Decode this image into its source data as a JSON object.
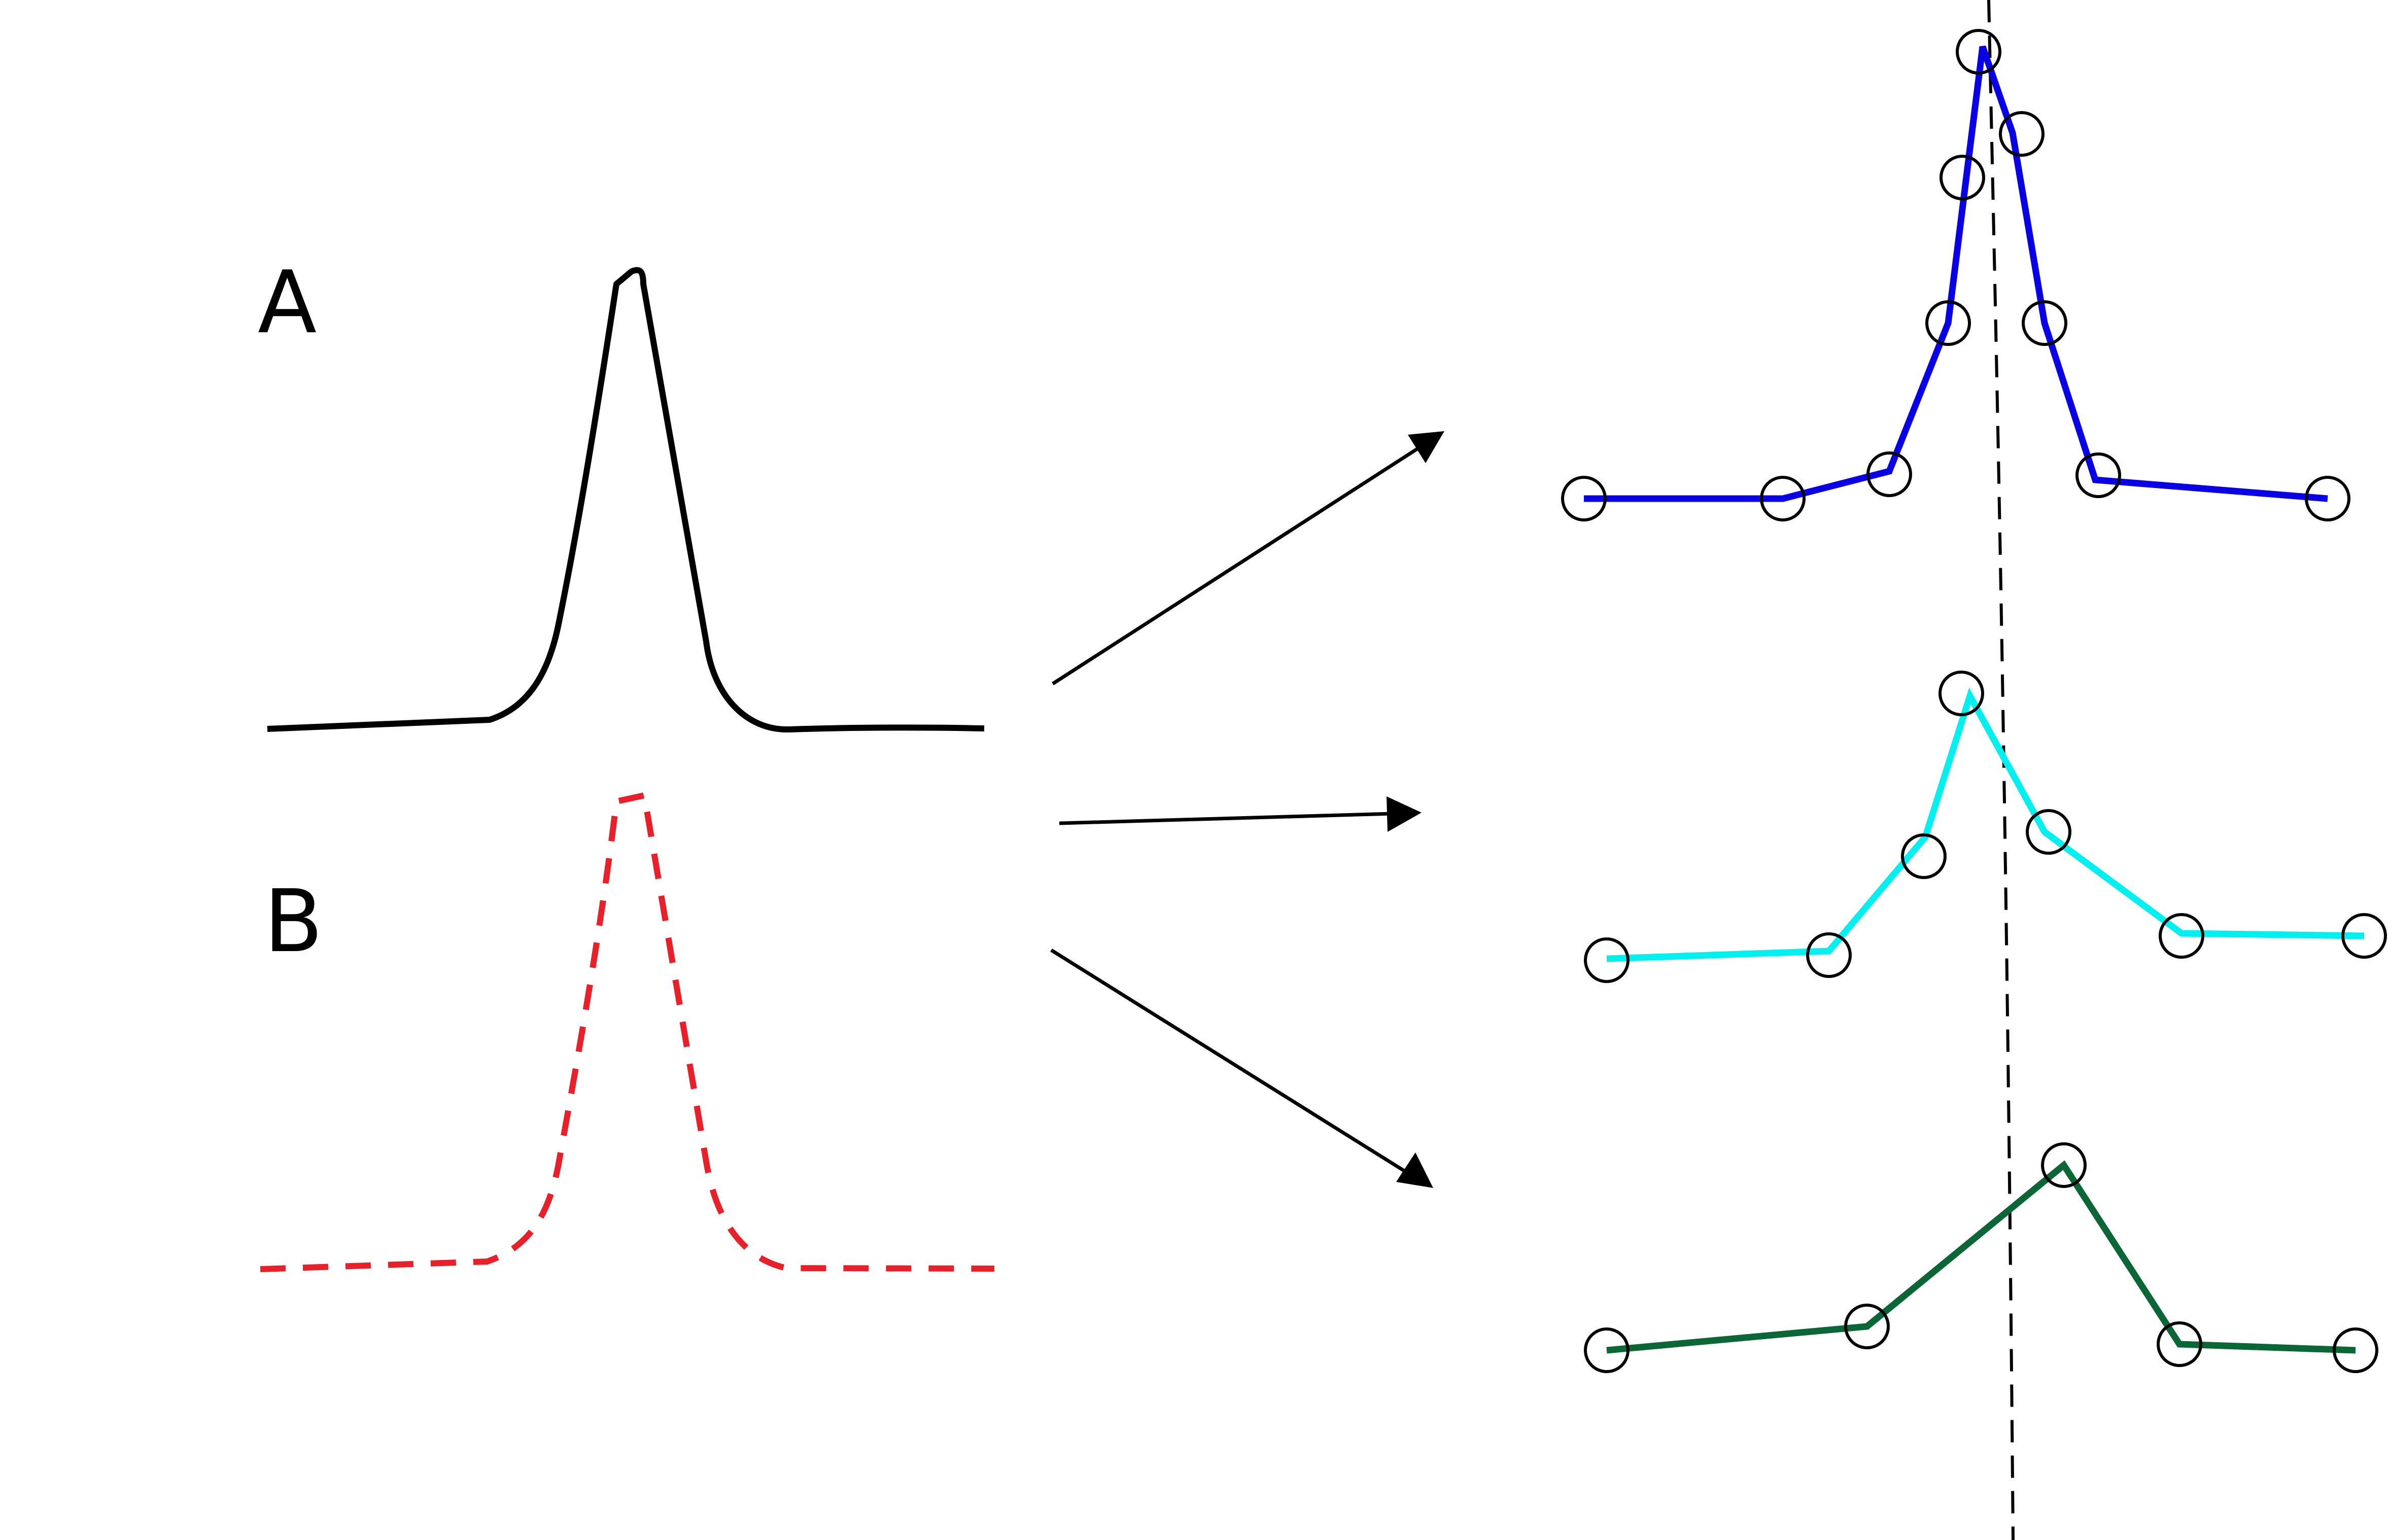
{
  "labels": {
    "a": "A",
    "b": "B"
  },
  "colors": {
    "curve_a": "#000000",
    "curve_b": "#e8202a",
    "series_1": "#0a00e6",
    "series_2": "#00f0f0",
    "series_3": "#0a6634",
    "arrows": "#000000",
    "reference_line": "#000000",
    "markers": "#000000"
  },
  "sampled_series": [
    {
      "id": "high-sampling",
      "point_count": 9,
      "color_key": "series_1"
    },
    {
      "id": "medium-sampling",
      "point_count": 7,
      "color_key": "series_2"
    },
    {
      "id": "low-sampling",
      "point_count": 5,
      "color_key": "series_3"
    }
  ],
  "arrow_count": 3,
  "reference_line_style": "dashed vertical"
}
